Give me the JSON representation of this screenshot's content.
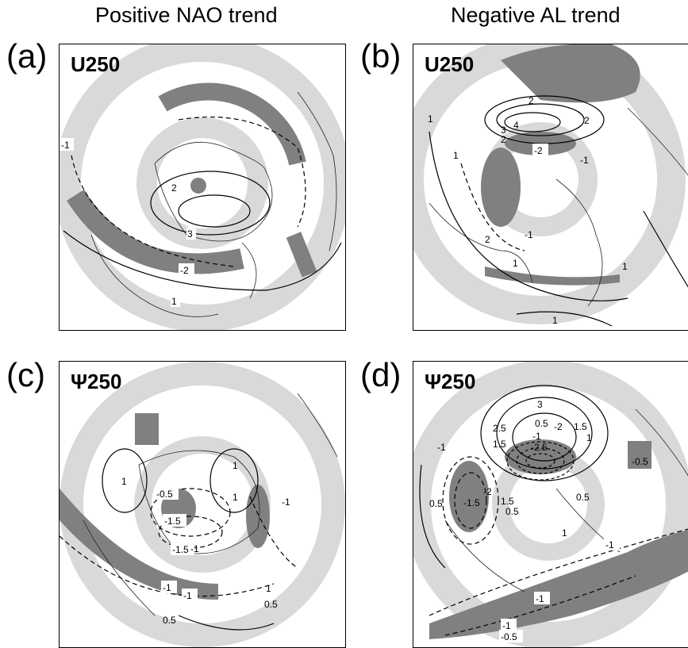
{
  "columns": {
    "left_title": "Positive NAO trend",
    "right_title": "Negative AL trend"
  },
  "panels": [
    {
      "letter": "(a)",
      "variable": "U250",
      "contour_labels": [
        "-1",
        "2",
        "3",
        "-2",
        "1"
      ]
    },
    {
      "letter": "(b)",
      "variable": "U250",
      "contour_labels": [
        "2",
        "2",
        "3",
        "4",
        "2",
        "-1",
        "1",
        "-2",
        "1",
        "2",
        "1",
        "-1",
        "1",
        "1"
      ]
    },
    {
      "letter": "(c)",
      "variable": "Ψ250",
      "contour_labels": [
        "1",
        "-0.5",
        "1",
        "-1.5",
        "-1.5",
        "1",
        "-1",
        "-1",
        "-1",
        "0.5",
        "1",
        "0.5",
        "-1"
      ]
    },
    {
      "letter": "(d)",
      "variable": "Ψ250",
      "contour_labels": [
        "3",
        "2.5",
        "0.5",
        "-2",
        "1.5",
        "1.5",
        "-1",
        "1",
        "-2.5",
        "-1",
        "-0.5",
        "0.5",
        "-2",
        "1.5",
        "-1.5",
        "0.5",
        "0.5",
        "1",
        "-1",
        "-1",
        "-1",
        "-0.5"
      ]
    }
  ],
  "colors": {
    "shade_dark": "#808080",
    "shade_light": "#d9d9d9",
    "contour": "#000000",
    "coast": "#222222"
  }
}
